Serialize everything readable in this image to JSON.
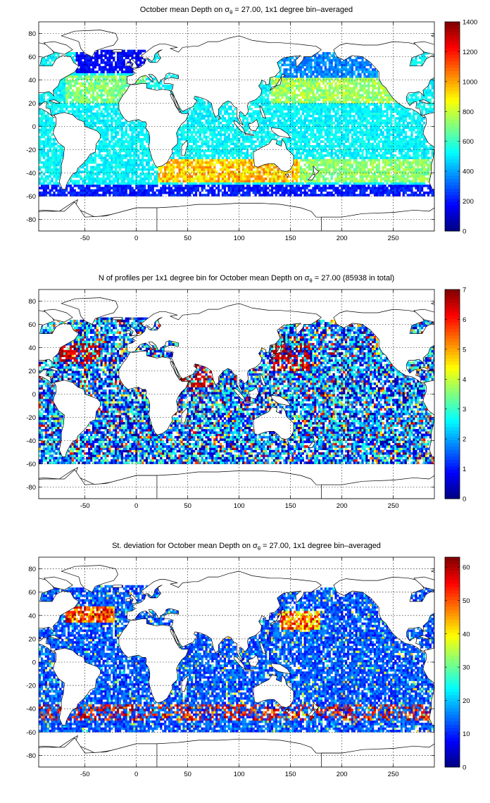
{
  "chart_data": [
    {
      "type": "heatmap",
      "title_prefix": "October mean Depth on ",
      "title_symbol": "σ",
      "title_subscript": "θ",
      "title_suffix": " = 27.00, 1x1 degree bin–averaged",
      "xlim": [
        -95,
        290
      ],
      "ylim": [
        -90,
        90
      ],
      "xticks": [
        -50,
        0,
        50,
        100,
        150,
        200,
        250
      ],
      "yticks": [
        -80,
        -60,
        -40,
        -20,
        0,
        20,
        40,
        60,
        80
      ],
      "grid": true,
      "colormap": "jet",
      "clim": [
        0,
        1400
      ],
      "colorbar_ticks": [
        0,
        200,
        400,
        600,
        800,
        1000,
        1200,
        1400
      ],
      "field": "depth"
    },
    {
      "type": "heatmap",
      "title_prefix": "N of profiles per 1x1 degree bin for October mean Depth on ",
      "title_symbol": "σ",
      "title_subscript": "θ",
      "title_suffix": " = 27.00 (85938 in total)",
      "xlim": [
        -95,
        290
      ],
      "ylim": [
        -90,
        90
      ],
      "xticks": [
        -50,
        0,
        50,
        100,
        150,
        200,
        250
      ],
      "yticks": [
        -80,
        -60,
        -40,
        -20,
        0,
        20,
        40,
        60,
        80
      ],
      "grid": true,
      "colormap": "jet",
      "clim": [
        0,
        7
      ],
      "colorbar_ticks": [
        0,
        1,
        2,
        3,
        4,
        5,
        6,
        7
      ],
      "field": "count"
    },
    {
      "type": "heatmap",
      "title_prefix": "St. deviation for October mean Depth on ",
      "title_symbol": "σ",
      "title_subscript": "θ",
      "title_suffix": " = 27.00, 1x1 degree bin–averaged",
      "xlim": [
        -95,
        290
      ],
      "ylim": [
        -90,
        90
      ],
      "xticks": [
        -50,
        0,
        50,
        100,
        150,
        200,
        250
      ],
      "yticks": [
        -80,
        -60,
        -40,
        -20,
        0,
        20,
        40,
        60,
        80
      ],
      "grid": true,
      "colormap": "jet",
      "clim": [
        0,
        63
      ],
      "colorbar_ticks": [
        0,
        10,
        20,
        30,
        40,
        50,
        60
      ],
      "field": "std"
    }
  ]
}
